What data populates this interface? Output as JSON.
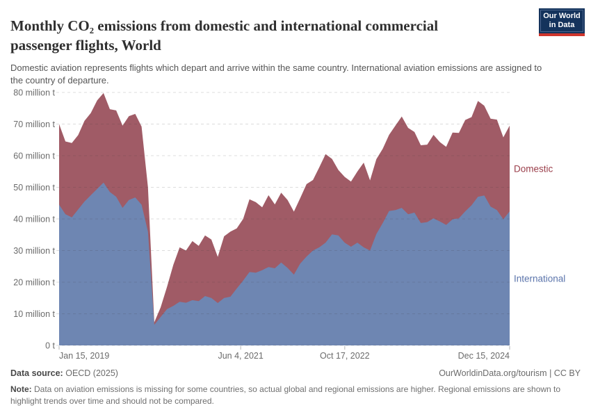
{
  "header": {
    "title": "Monthly CO₂ emissions from domestic and international commercial passenger flights, World",
    "subtitle": "Domestic aviation represents flights which depart and arrive within the same country. International aviation emissions are assigned to the country of departure.",
    "logo": {
      "line1": "Our World",
      "line2": "in Data",
      "bg_color": "#14335c",
      "accent_color": "#cf352c"
    }
  },
  "chart_data": {
    "type": "area",
    "stacked": true,
    "title": "Monthly CO₂ emissions from domestic and international commercial passenger flights, World",
    "unit": "million t",
    "ylim": [
      0,
      80
    ],
    "y_tick_step": 10,
    "y_tick_labels": [
      "0 t",
      "10 million t",
      "20 million t",
      "30 million t",
      "40 million t",
      "50 million t",
      "60 million t",
      "70 million t",
      "80 million t"
    ],
    "x_ticks": [
      {
        "label": "Jan 15, 2019",
        "pos": 0,
        "align": "start"
      },
      {
        "label": "Jun 4, 2021",
        "pos": 0.403,
        "align": "middle"
      },
      {
        "label": "Oct 17, 2022",
        "pos": 0.634,
        "align": "middle"
      },
      {
        "label": "Dec 15, 2024",
        "pos": 1,
        "align": "end"
      }
    ],
    "grid": "dashed",
    "legend_position": "right-of-plot",
    "months": [
      "2019-01",
      "2019-02",
      "2019-03",
      "2019-04",
      "2019-05",
      "2019-06",
      "2019-07",
      "2019-08",
      "2019-09",
      "2019-10",
      "2019-11",
      "2019-12",
      "2020-01",
      "2020-02",
      "2020-03",
      "2020-04",
      "2020-05",
      "2020-06",
      "2020-07",
      "2020-08",
      "2020-09",
      "2020-10",
      "2020-11",
      "2020-12",
      "2021-01",
      "2021-02",
      "2021-03",
      "2021-04",
      "2021-05",
      "2021-06",
      "2021-07",
      "2021-08",
      "2021-09",
      "2021-10",
      "2021-11",
      "2021-12",
      "2022-01",
      "2022-02",
      "2022-03",
      "2022-04",
      "2022-05",
      "2022-06",
      "2022-07",
      "2022-08",
      "2022-09",
      "2022-10",
      "2022-11",
      "2022-12",
      "2023-01",
      "2023-02",
      "2023-03",
      "2023-04",
      "2023-05",
      "2023-06",
      "2023-07",
      "2023-08",
      "2023-09",
      "2023-10",
      "2023-11",
      "2023-12",
      "2024-01",
      "2024-02",
      "2024-03",
      "2024-04",
      "2024-05",
      "2024-06",
      "2024-07",
      "2024-08",
      "2024-09",
      "2024-10",
      "2024-11",
      "2024-12"
    ],
    "series": [
      {
        "name": "International",
        "fill": "#6e86b2",
        "label_color": "#5b74ab",
        "values": [
          44.5,
          41.5,
          40.5,
          43,
          45.5,
          47.5,
          49.5,
          51.5,
          48.5,
          47,
          43.5,
          46,
          46.8,
          44.5,
          36,
          6.5,
          9,
          11.5,
          12.5,
          13.8,
          13.5,
          14.3,
          14,
          15.6,
          15,
          13.4,
          15,
          15.4,
          18,
          20.5,
          23.2,
          23,
          23.8,
          24.8,
          24.4,
          26.2,
          24.5,
          22.4,
          25.9,
          28.1,
          30,
          31,
          32.5,
          35.1,
          34.8,
          32.5,
          31.2,
          32.5,
          31,
          30,
          35.2,
          38.7,
          42.5,
          42.8,
          43.5,
          41.5,
          42,
          38.7,
          39,
          40.2,
          39.2,
          38.1,
          39.9,
          40.2,
          42.4,
          44.3,
          47,
          47.4,
          43.9,
          42.8,
          39.9,
          42.4
        ]
      },
      {
        "name": "Domestic",
        "fill": "#a05b66",
        "label_color": "#9a3e4a",
        "values": [
          25.5,
          23,
          23.5,
          23.5,
          25.5,
          26,
          28,
          28.3,
          26.2,
          27.3,
          26,
          26.5,
          26.4,
          24.7,
          14,
          0.8,
          3,
          7,
          13,
          17.2,
          16.5,
          18.7,
          17.5,
          19.2,
          18.5,
          14.6,
          19.5,
          20.6,
          19,
          19.5,
          23,
          22.3,
          19.9,
          22.7,
          20.2,
          22.1,
          21.5,
          19.9,
          20.7,
          22.9,
          22.3,
          25.3,
          28,
          23.9,
          20.7,
          20.8,
          20.6,
          22.5,
          26.8,
          22.2,
          23.7,
          23.5,
          24.1,
          26.7,
          28.9,
          27.3,
          25.5,
          24.6,
          24.5,
          26.4,
          25.1,
          24.7,
          27.4,
          27,
          28.9,
          27.9,
          30.3,
          28.4,
          27.8,
          28.6,
          25.9,
          27.1
        ]
      }
    ]
  },
  "footer": {
    "source_label": "Data source:",
    "source_value": "OECD (2025)",
    "attribution_link": "OurWorldinData.org/tourism",
    "attribution_separator": " | ",
    "license": "CC BY",
    "note_label": "Note:",
    "note_text": " Data on aviation emissions is missing for some countries, so actual global and regional emissions are higher. Regional emissions are shown to highlight trends over time and should not be compared."
  }
}
